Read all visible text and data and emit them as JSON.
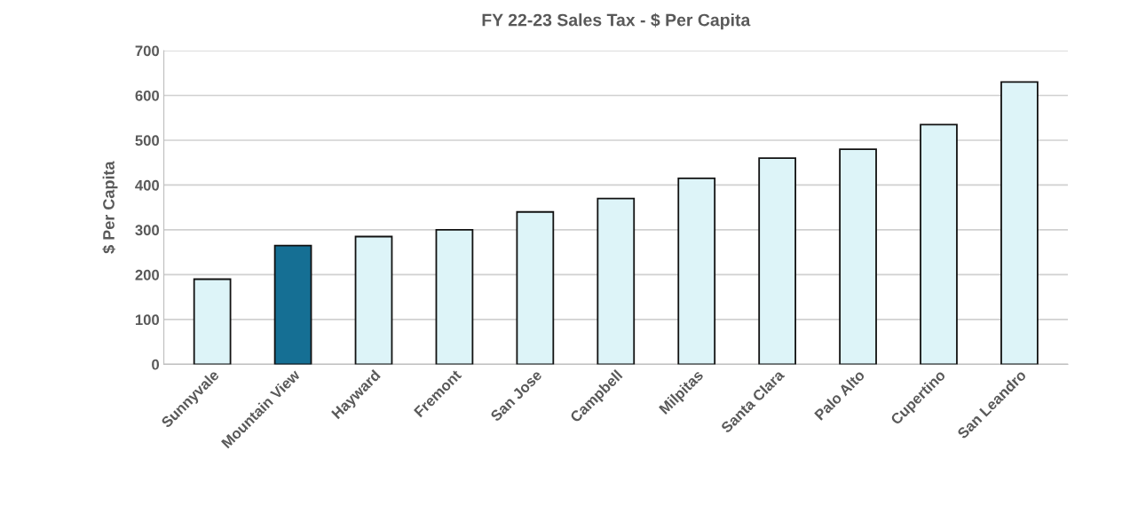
{
  "chart_data": {
    "type": "bar",
    "title": "FY 22-23 Sales Tax - $ Per Capita",
    "ylabel": "$ Per Capita",
    "categories": [
      "Sunnyvale",
      "Mountain View",
      "Hayward",
      "Fremont",
      "San Jose",
      "Campbell",
      "Milpitas",
      "Santa Clara",
      "Palo Alto",
      "Cupertino",
      "San Leandro"
    ],
    "values": [
      190,
      265,
      285,
      300,
      340,
      370,
      415,
      460,
      480,
      535,
      630
    ],
    "colors": [
      "#ddf4f8",
      "#156f94",
      "#ddf4f8",
      "#ddf4f8",
      "#ddf4f8",
      "#ddf4f8",
      "#ddf4f8",
      "#ddf4f8",
      "#ddf4f8",
      "#ddf4f8",
      "#ddf4f8"
    ],
    "ylim": [
      0,
      700
    ],
    "yticks": [
      0,
      100,
      200,
      300,
      400,
      500,
      600,
      700
    ],
    "grid": "y"
  }
}
